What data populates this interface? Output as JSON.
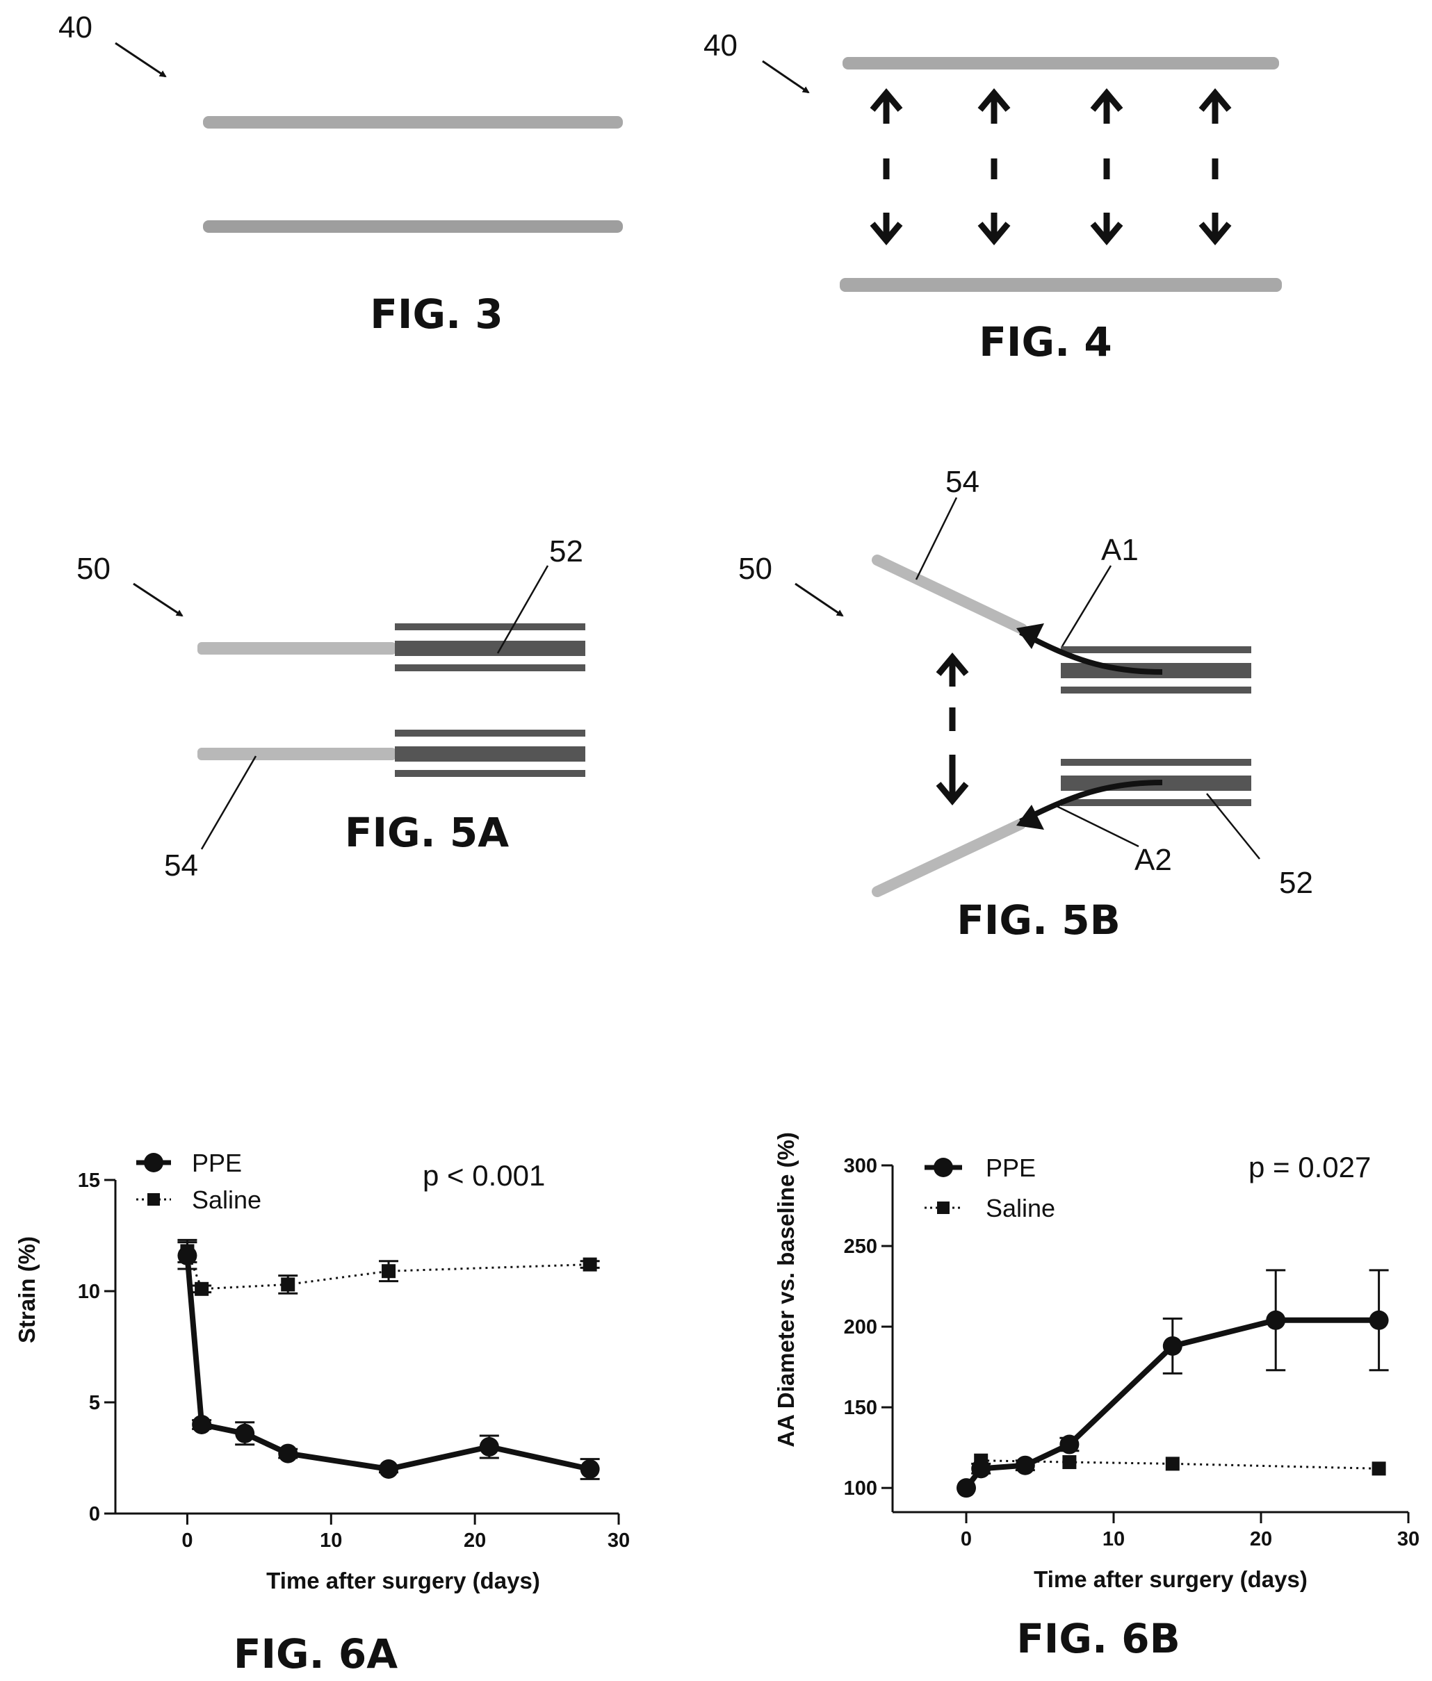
{
  "figures": {
    "fig3": {
      "caption": "FIG. 3",
      "ref": "40"
    },
    "fig4": {
      "caption": "FIG. 4",
      "ref": "40"
    },
    "fig5a": {
      "caption": "FIG. 5A",
      "ref_main": "50",
      "ref_cuff": "52",
      "ref_graft": "54"
    },
    "fig5b": {
      "caption": "FIG. 5B",
      "ref_main": "50",
      "ref_graft": "54",
      "ref_cuff": "52",
      "arrow1": "A1",
      "arrow2": "A2"
    },
    "fig6a": {
      "caption": "FIG. 6A"
    },
    "fig6b": {
      "caption": "FIG. 6B"
    }
  },
  "chart_data": [
    {
      "type": "line",
      "xlabel": "Time after surgery (days)",
      "ylabel": "Strain (%)",
      "xlim": [
        -5,
        30
      ],
      "ylim": [
        0,
        15
      ],
      "xticks": [
        0,
        10,
        20,
        30
      ],
      "yticks": [
        0,
        5,
        10,
        15
      ],
      "legend_position": "top-left",
      "annotation": "p < 0.001",
      "series": [
        {
          "name": "PPE",
          "style": "solid-circle",
          "x": [
            0,
            1,
            4,
            7,
            14,
            21,
            28
          ],
          "y": [
            11.6,
            4.0,
            3.6,
            2.7,
            2.0,
            3.0,
            2.0
          ],
          "err": [
            0.6,
            0.2,
            0.5,
            0.2,
            0.15,
            0.5,
            0.45
          ]
        },
        {
          "name": "Saline",
          "style": "dotted-square",
          "x": [
            0,
            1,
            7,
            14,
            28
          ],
          "y": [
            11.8,
            10.1,
            10.3,
            10.9,
            11.2
          ],
          "err": [
            0.5,
            0.15,
            0.4,
            0.45,
            0.15
          ]
        }
      ]
    },
    {
      "type": "line",
      "xlabel": "Time after surgery (days)",
      "ylabel": "AA Diameter vs. baseline (%)",
      "xlim": [
        -5,
        30
      ],
      "ylim": [
        85,
        300
      ],
      "xticks": [
        0,
        10,
        20,
        30
      ],
      "yticks": [
        100,
        150,
        200,
        250,
        300
      ],
      "legend_position": "top-left",
      "annotation": "p = 0.027",
      "series": [
        {
          "name": "PPE",
          "style": "solid-circle",
          "x": [
            0,
            1,
            4,
            7,
            14,
            21,
            28
          ],
          "y": [
            100,
            112,
            114,
            127,
            188,
            204,
            204
          ],
          "err": [
            0,
            3,
            3,
            4,
            17,
            31,
            31
          ]
        },
        {
          "name": "Saline",
          "style": "dotted-square",
          "x": [
            1,
            7,
            14,
            28
          ],
          "y": [
            117,
            116,
            115,
            112
          ],
          "err": [
            0,
            0,
            0,
            0
          ]
        }
      ]
    }
  ]
}
